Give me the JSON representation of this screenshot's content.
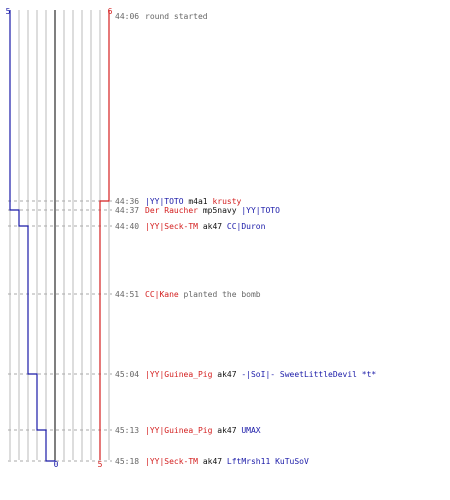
{
  "colors": {
    "team_a": "#1a1aa8",
    "team_b": "#d42020",
    "neutral_text": "#666666",
    "weapon_text": "#111111",
    "grid": "#bbbbbb",
    "dashed": "#aaaaaa",
    "center": "#555555"
  },
  "counts": {
    "team_a_start": "5",
    "team_b_start": "6",
    "team_a_end": "0",
    "team_b_end": "5"
  },
  "events": [
    {
      "time": "44:06",
      "kind": "message",
      "text": "round started"
    },
    {
      "time": "44:36",
      "kind": "kill",
      "killer": "|YY|TOTO",
      "killer_team": "a",
      "weapon": "m4a1",
      "victim": "krusty",
      "victim_team": "b"
    },
    {
      "time": "44:37",
      "kind": "kill",
      "killer": "Der Raucher",
      "killer_team": "b",
      "weapon": "mp5navy",
      "victim": "|YY|TOTO",
      "victim_team": "a"
    },
    {
      "time": "44:40",
      "kind": "kill",
      "killer": "|YY|Seck-TM",
      "killer_team": "b",
      "weapon": "ak47",
      "victim": "CC|Duron",
      "victim_team": "a"
    },
    {
      "time": "44:51",
      "kind": "plant",
      "actor": "CC|Kane",
      "actor_team": "b",
      "text": "planted the bomb"
    },
    {
      "time": "45:04",
      "kind": "kill",
      "killer": "|YY|Guinea_Pig",
      "killer_team": "b",
      "weapon": "ak47",
      "victim": "-|SoI|- SweetLittleDevil *t*",
      "victim_team": "a"
    },
    {
      "time": "45:13",
      "kind": "kill",
      "killer": "|YY|Guinea_Pig",
      "killer_team": "b",
      "weapon": "ak47",
      "victim": "UMAX",
      "victim_team": "a"
    },
    {
      "time": "45:18",
      "kind": "kill",
      "killer": "|YY|Seck-TM",
      "killer_team": "b",
      "weapon": "ak47",
      "victim": "LftMrsh11 KuTuSoV",
      "victim_team": "a"
    }
  ]
}
